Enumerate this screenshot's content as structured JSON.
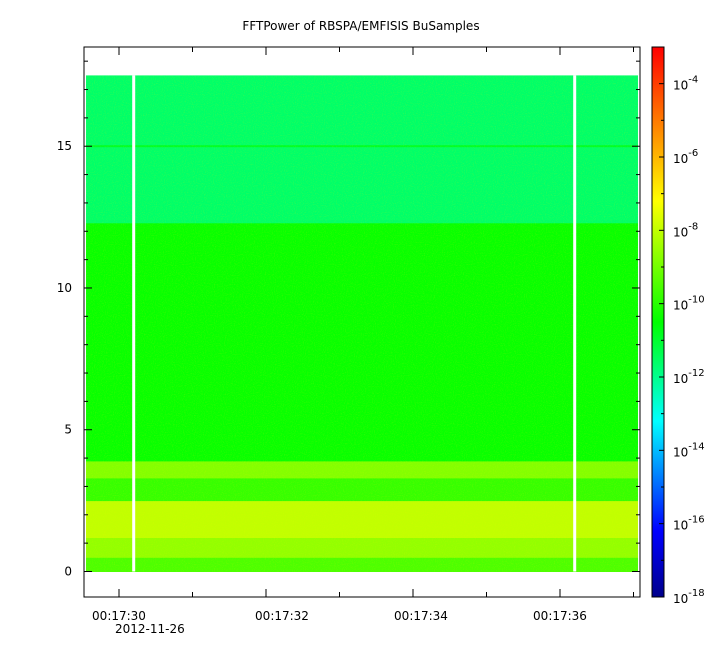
{
  "chart_data": {
    "type": "heatmap",
    "title": "FFTPower of RBSPA/EMFISIS  BuSamples",
    "xlabel": "",
    "ylabel": "",
    "x_tick_labels": [
      "00:17:30",
      "00:17:32",
      "00:17:34",
      "00:17:36"
    ],
    "x_date_label": "2012-11-26",
    "y_ticks": [
      0,
      5,
      10,
      15
    ],
    "y_tick_labels": [
      "0",
      "5",
      "10",
      "15"
    ],
    "ylim": [
      -0.9,
      18.5
    ],
    "z_scale": "log",
    "z_range": [
      1e-18,
      0.001
    ],
    "colorbar_ticks": [
      {
        "base": "10",
        "exp": "-4",
        "value": 0.0001
      },
      {
        "base": "10",
        "exp": "-6",
        "value": 1e-06
      },
      {
        "base": "10",
        "exp": "-8",
        "value": 1e-08
      },
      {
        "base": "10",
        "exp": "-10",
        "value": 1e-10
      },
      {
        "base": "10",
        "exp": "-12",
        "value": 1e-12
      },
      {
        "base": "10",
        "exp": "-14",
        "value": 1e-14
      },
      {
        "base": "10",
        "exp": "-16",
        "value": 1e-16
      },
      {
        "base": "10",
        "exp": "-18",
        "value": 1e-18
      }
    ],
    "colormap": [
      "#00008b",
      "#0000ff",
      "#00ffff",
      "#00ff00",
      "#ffff00",
      "#ff0000"
    ],
    "data_y_range": [
      0,
      17.5
    ],
    "data_gaps_at": [
      "00:17:30.2",
      "00:17:36.2"
    ],
    "bands": [
      {
        "y_from": 0,
        "y_to": 0.5,
        "log10_power": -9.5
      },
      {
        "y_from": 0.5,
        "y_to": 1.2,
        "log10_power": -8.6
      },
      {
        "y_from": 1.2,
        "y_to": 2.5,
        "log10_power": -8.0
      },
      {
        "y_from": 2.5,
        "y_to": 3.3,
        "log10_power": -9.8
      },
      {
        "y_from": 3.3,
        "y_to": 3.9,
        "log10_power": -8.8
      },
      {
        "y_from": 3.9,
        "y_to": 12.3,
        "log10_power": -10.4
      },
      {
        "y_from": 12.3,
        "y_to": 17.5,
        "log10_power": -11.6
      }
    ]
  }
}
